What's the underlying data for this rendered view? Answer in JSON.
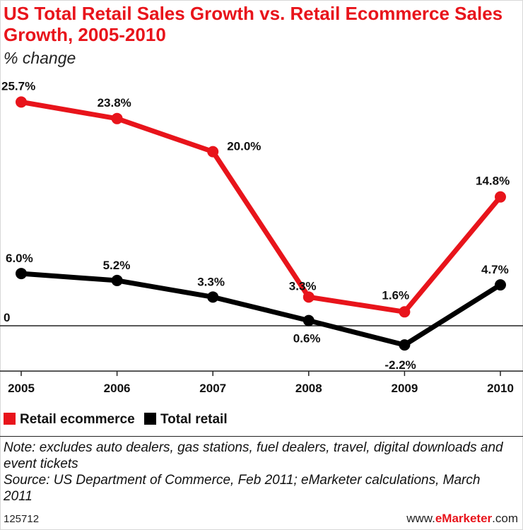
{
  "title": "US Total Retail Sales Growth vs. Retail Ecommerce Sales Growth, 2005-2010",
  "subtitle": "% change",
  "chart_data": {
    "type": "line",
    "categories": [
      "2005",
      "2006",
      "2007",
      "2008",
      "2009",
      "2010"
    ],
    "series": [
      {
        "name": "Retail ecommerce",
        "color": "#e8141b",
        "values": [
          25.7,
          23.8,
          20.0,
          3.3,
          1.6,
          14.8
        ],
        "labels": [
          "25.7%",
          "23.8%",
          "20.0%",
          "3.3%",
          "1.6%",
          "14.8%"
        ]
      },
      {
        "name": "Total retail",
        "color": "#000000",
        "values": [
          6.0,
          5.2,
          3.3,
          0.6,
          -2.2,
          4.7
        ],
        "labels": [
          "6.0%",
          "5.2%",
          "3.3%",
          "0.6%",
          "-2.2%",
          "4.7%"
        ]
      }
    ],
    "zero_label": "0",
    "ylim": [
      -5.2,
      28
    ],
    "grid": false,
    "legend_position": "bottom-left"
  },
  "legend": {
    "ecommerce_label": "Retail ecommerce",
    "total_label": "Total retail"
  },
  "notes": {
    "note": "Note: excludes auto dealers, gas stations, fuel dealers, travel, digital downloads and event tickets",
    "source": "Source: US Department of Commerce, Feb 2011; eMarketer calculations, March 2011"
  },
  "footer": {
    "id": "125712",
    "brand_prefix": "www.",
    "brand_name": "eMarketer",
    "brand_suffix": ".com"
  }
}
